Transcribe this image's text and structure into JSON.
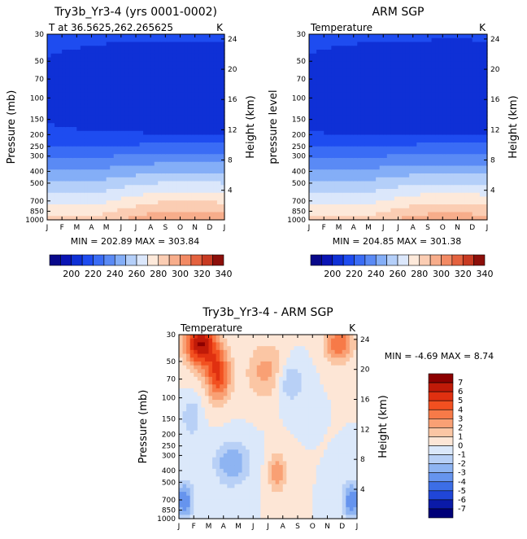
{
  "chart_data": [
    {
      "type": "heatmap",
      "title": "Try3b_Yr3-4 (yrs 0001-0002)",
      "subtitle_left": "T at 36.5625,262.265625",
      "subtitle_right": "K",
      "ylabel_left": "Pressure (mb)",
      "ylabel_right": "Height (km)",
      "months": [
        "J",
        "F",
        "M",
        "A",
        "M",
        "J",
        "J",
        "A",
        "S",
        "O",
        "N",
        "D",
        "J"
      ],
      "pressure_ticks": [
        30,
        50,
        70,
        100,
        150,
        200,
        250,
        300,
        400,
        500,
        700,
        850,
        1000
      ],
      "height_ticks": [
        24,
        20,
        16,
        12,
        8,
        4
      ],
      "stats": "MIN = 202.89 MAX = 303.84",
      "colorbar_labels": [
        "200",
        "220",
        "240",
        "260",
        "280",
        "300",
        "320",
        "340"
      ],
      "model": "sim"
    },
    {
      "type": "heatmap",
      "title": "ARM SGP",
      "subtitle_left": "Temperature",
      "subtitle_right": "K",
      "ylabel_left": "pressure level",
      "ylabel_right": "Height (km)",
      "months": [
        "J",
        "F",
        "M",
        "A",
        "M",
        "J",
        "J",
        "A",
        "S",
        "O",
        "N",
        "D",
        "J"
      ],
      "pressure_ticks": [
        30,
        50,
        70,
        100,
        150,
        200,
        250,
        300,
        400,
        500,
        700,
        850,
        1000
      ],
      "height_ticks": [
        24,
        20,
        16,
        12,
        8,
        4
      ],
      "stats": "MIN = 204.85 MAX = 301.38",
      "colorbar_labels": [
        "200",
        "220",
        "240",
        "260",
        "280",
        "300",
        "320",
        "340"
      ],
      "model": "obs"
    },
    {
      "type": "heatmap",
      "title": "Try3b_Yr3-4 - ARM SGP",
      "subtitle_left": "Temperature",
      "subtitle_right": "K",
      "ylabel_left": "Pressure (mb)",
      "ylabel_right": "Height (km)",
      "months": [
        "J",
        "F",
        "M",
        "A",
        "M",
        "J",
        "J",
        "A",
        "S",
        "O",
        "N",
        "D",
        "J"
      ],
      "pressure_ticks": [
        30,
        50,
        70,
        100,
        150,
        200,
        250,
        300,
        400,
        500,
        700,
        850,
        1000
      ],
      "height_ticks": [
        24,
        20,
        16,
        12,
        8,
        4
      ],
      "stats": "MIN =   -4.69 MAX =    8.74",
      "colorbar_labels": [
        "7",
        "6",
        "5",
        "4",
        "3",
        "2",
        "1",
        "0",
        "-1",
        "-2",
        "-3",
        "-4",
        "-5",
        "-6",
        "-7"
      ],
      "model": "diff"
    }
  ],
  "colors": {
    "abs_scale": [
      "#08088a",
      "#0a14b4",
      "#0f30d6",
      "#1e4cf0",
      "#3a6cf5",
      "#5a8af5",
      "#84aef7",
      "#b4cff9",
      "#dbe7fb",
      "#fde9da",
      "#fbcdb3",
      "#f7ad8b",
      "#f28a64",
      "#e4623f",
      "#c83a22",
      "#8c0f0a"
    ],
    "diff_scale": [
      "#8c0000",
      "#c01a08",
      "#e03010",
      "#f25020",
      "#f77a48",
      "#f9a074",
      "#fbc6a4",
      "#fde6d6",
      "#dbe8fa",
      "#b8d0f6",
      "#8eb4f2",
      "#6694ee",
      "#3c6ee6",
      "#2046d8",
      "#0a1aa8",
      "#000078"
    ]
  }
}
